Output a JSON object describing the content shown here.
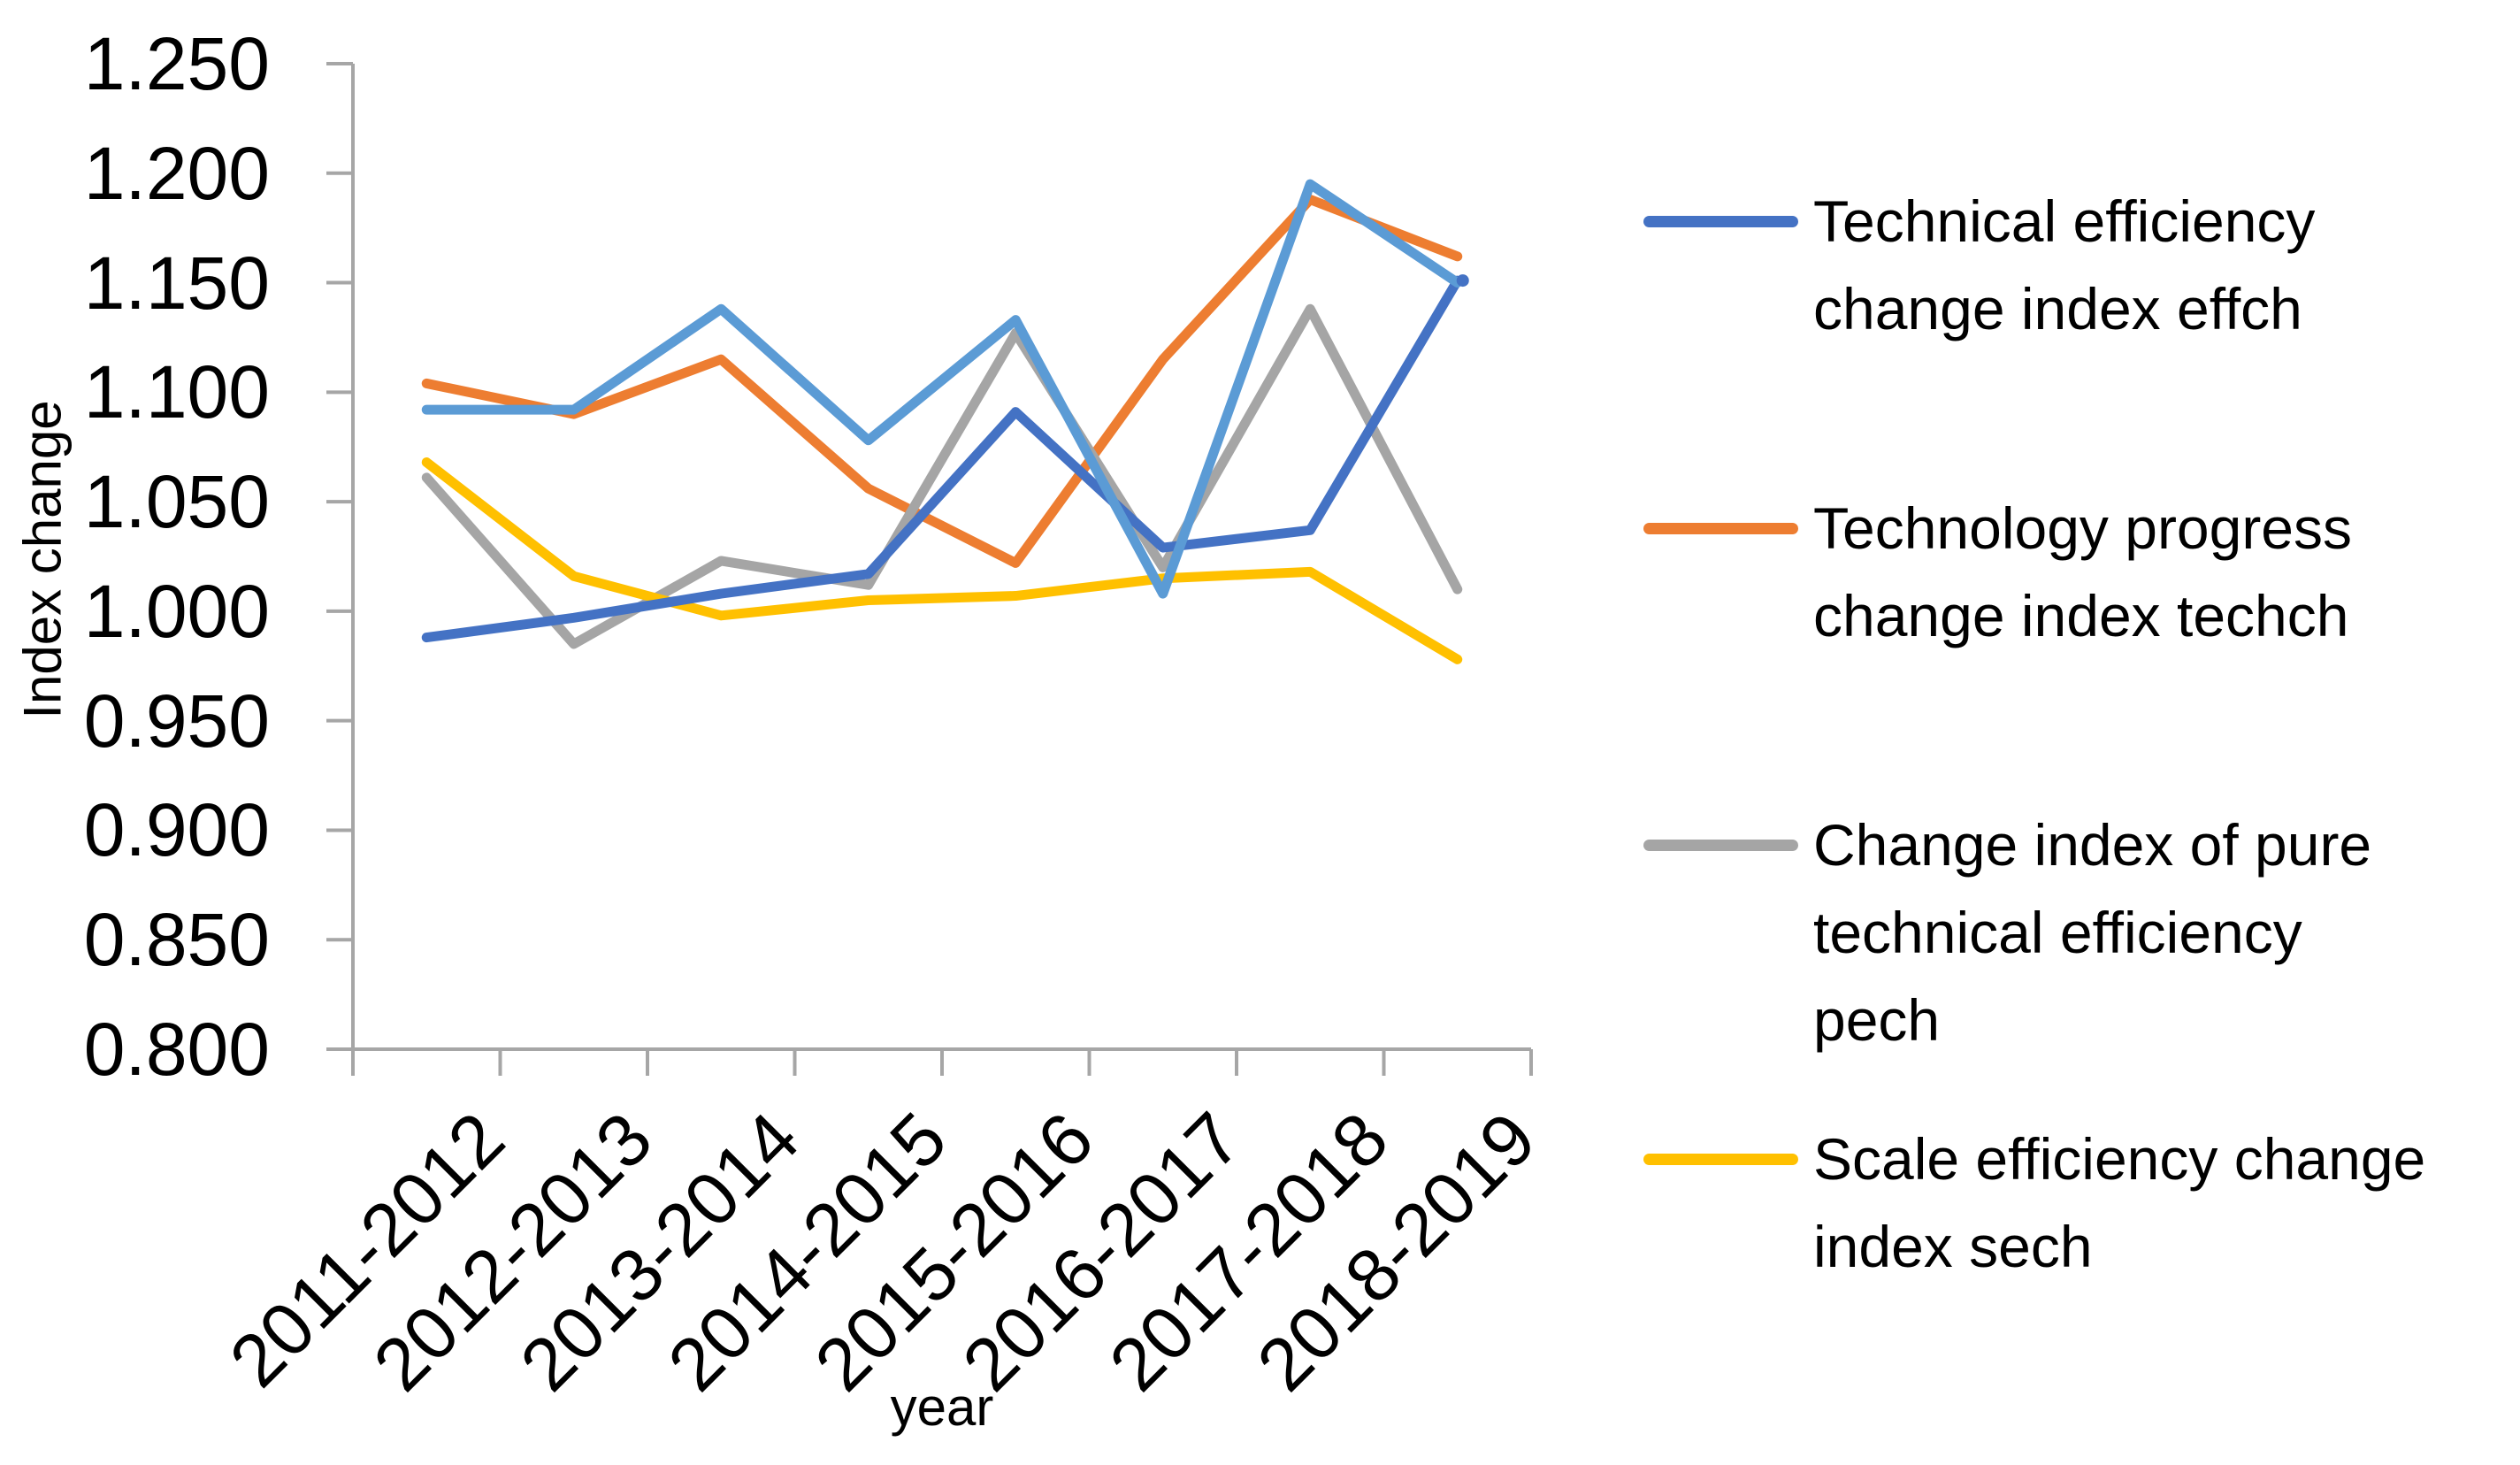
{
  "chart_data": {
    "type": "line",
    "title": "",
    "xlabel": "year",
    "ylabel": "Index change",
    "ylim": [
      0.8,
      1.25
    ],
    "y_tick_step": 0.05,
    "y_tick_labels": [
      "1.250",
      "1.200",
      "1.150",
      "1.100",
      "1.050",
      "1.000",
      "0.950",
      "0.900",
      "0.850",
      "0.800"
    ],
    "categories": [
      "2011-2012",
      "2012-2013",
      "2013-2014",
      "2014-2015",
      "2015-2016",
      "2016-2017",
      "2017-2018",
      "2018-2019"
    ],
    "series": [
      {
        "name": "Technical efficiency change index effch",
        "color": "#4472C4",
        "values": [
          0.988,
          0.997,
          1.008,
          1.017,
          1.091,
          1.029,
          1.037,
          1.151
        ]
      },
      {
        "name": "Technology progress change index techch",
        "color": "#ED7D31",
        "values": [
          1.104,
          1.09,
          1.115,
          1.056,
          1.022,
          1.115,
          1.188,
          1.162
        ]
      },
      {
        "name": "Change index of pure technical efficiency pech",
        "color": "#A5A5A5",
        "values": [
          1.061,
          0.985,
          1.023,
          1.012,
          1.127,
          1.02,
          1.138,
          1.01
        ]
      },
      {
        "name": "Scale efficiency change index sech",
        "color": "#FFC000",
        "values": [
          1.068,
          1.016,
          0.998,
          1.005,
          1.007,
          1.015,
          1.018,
          0.978
        ]
      },
      {
        "name": "(unlabeled light blue series)",
        "color": "#5B9BD5",
        "in_legend": false,
        "values": [
          1.092,
          1.092,
          1.138,
          1.078,
          1.133,
          1.008,
          1.195,
          1.15
        ]
      }
    ],
    "legend_position": "right",
    "grid": false,
    "axis_color": "#A6A6A6"
  },
  "legend": {
    "items": [
      {
        "color": "#4472C4",
        "lines": [
          "Technical efficiency",
          "change index effch"
        ]
      },
      {
        "color": "#ED7D31",
        "lines": [
          "Technology progress",
          "change index techch"
        ]
      },
      {
        "color": "#A5A5A5",
        "lines": [
          "Change index of pure",
          "technical efficiency",
          "pech"
        ]
      },
      {
        "color": "#FFC000",
        "lines": [
          "Scale efficiency change",
          "index sech"
        ]
      }
    ]
  }
}
